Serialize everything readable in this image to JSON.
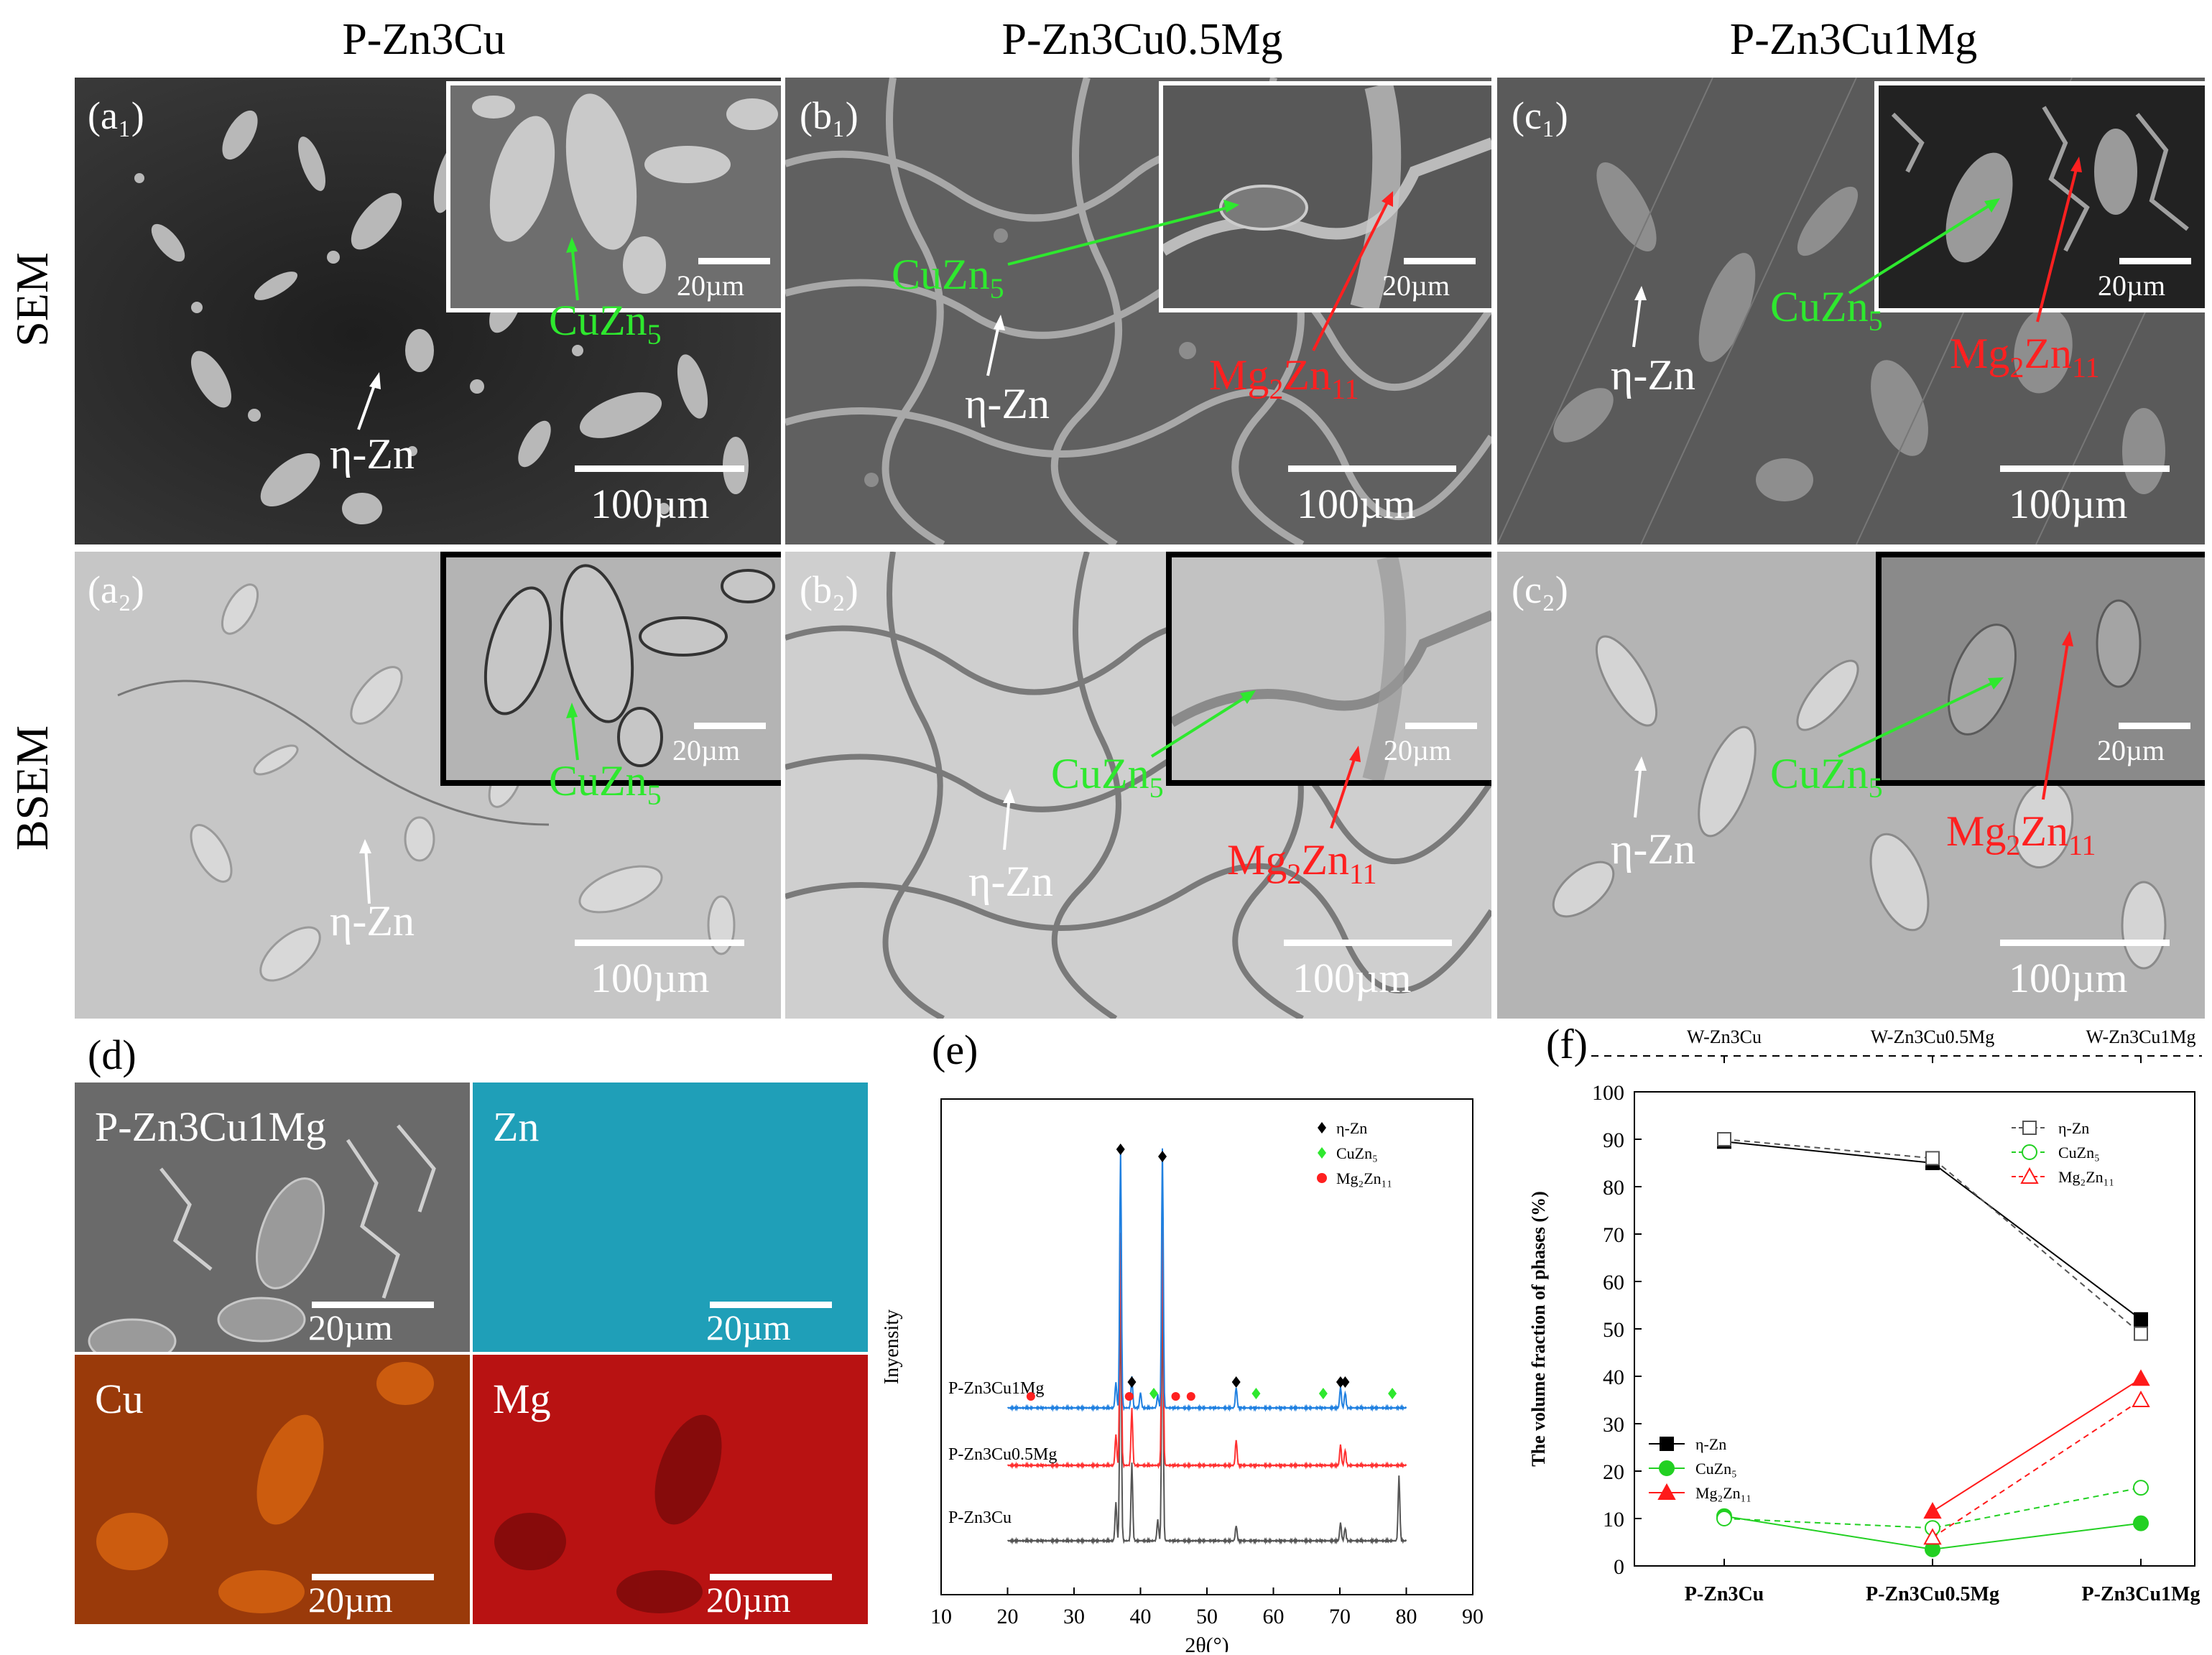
{
  "columns": [
    "P-Zn3Cu",
    "P-Zn3Cu0.5Mg",
    "P-Zn3Cu1Mg"
  ],
  "rows": [
    "SEM",
    "BSEM"
  ],
  "panels": {
    "a1": "(a₁)",
    "b1": "(b₁)",
    "c1": "(c₁)",
    "a2": "(a₂)",
    "b2": "(b₂)",
    "c2": "(c₂)",
    "d": "(d)",
    "e": "(e)",
    "f": "(f)"
  },
  "scale": {
    "main": "100µm",
    "inset": "20µm"
  },
  "phases": {
    "eta": "η-Zn",
    "cuzn_base": "CuZn",
    "cuzn_sub": "5",
    "mgzn_base": "Mg",
    "mgzn_sub1": "2",
    "mgzn_mid": "Zn",
    "mgzn_sub2": "11"
  },
  "maps": {
    "title": "P-Zn3Cu1Mg",
    "zn": "Zn",
    "cu": "Cu",
    "mg": "Mg",
    "colors": {
      "zn": "#1f9fb8",
      "cu": "#c8500f",
      "mg": "#c01010"
    }
  },
  "xrd": {
    "ylabel": "Inyensity",
    "xlabel": "2θ(°)",
    "legend": [
      "η-Zn",
      "CuZn₅",
      "Mg₂Zn₁₁"
    ],
    "samples": [
      "P-Zn3Cu1Mg",
      "P-Zn3Cu0.5Mg",
      "P-Zn3Cu"
    ],
    "xticks": [
      "10",
      "20",
      "30",
      "40",
      "50",
      "60",
      "70",
      "80",
      "90"
    ]
  },
  "chart_data": [
    {
      "type": "line",
      "id": "xrd",
      "x_range": [
        10,
        90
      ],
      "xlabel": "2θ(°)",
      "ylabel": "Inyensity",
      "series": [
        {
          "name": "P-Zn3Cu",
          "color": "#555555",
          "peaks": [
            {
              "x": 36.3,
              "h": 0.15
            },
            {
              "x": 37.0,
              "h": 0.97
            },
            {
              "x": 38.7,
              "h": 0.3
            },
            {
              "x": 42.6,
              "h": 0.08
            },
            {
              "x": 43.3,
              "h": 0.95
            },
            {
              "x": 54.4,
              "h": 0.06
            },
            {
              "x": 70.1,
              "h": 0.07
            },
            {
              "x": 70.8,
              "h": 0.05
            },
            {
              "x": 78.9,
              "h": 0.25
            }
          ]
        },
        {
          "name": "P-Zn3Cu0.5Mg",
          "color": "#ff3030",
          "peaks": [
            {
              "x": 36.3,
              "h": 0.12
            },
            {
              "x": 37.0,
              "h": 0.9
            },
            {
              "x": 38.7,
              "h": 0.22
            },
            {
              "x": 43.3,
              "h": 0.92
            },
            {
              "x": 54.4,
              "h": 0.1
            },
            {
              "x": 70.1,
              "h": 0.08
            },
            {
              "x": 70.8,
              "h": 0.06
            }
          ]
        },
        {
          "name": "P-Zn3Cu1Mg",
          "color": "#2080e0",
          "peaks": [
            {
              "x": 36.3,
              "h": 0.1
            },
            {
              "x": 37.0,
              "h": 1.0
            },
            {
              "x": 38.7,
              "h": 0.12
            },
            {
              "x": 40.0,
              "h": 0.06
            },
            {
              "x": 42.6,
              "h": 0.05
            },
            {
              "x": 43.3,
              "h": 1.0
            },
            {
              "x": 54.4,
              "h": 0.08
            },
            {
              "x": 70.1,
              "h": 0.08
            },
            {
              "x": 70.8,
              "h": 0.06
            }
          ]
        }
      ],
      "markers": {
        "eta": [
          37.0,
          38.7,
          43.3,
          54.4,
          70.1,
          70.8
        ],
        "cuzn5": [
          42.0,
          57.4,
          67.5,
          77.9
        ],
        "mg2zn11": [
          23.5,
          38.3,
          45.3,
          47.6
        ]
      }
    },
    {
      "type": "line",
      "id": "volume_fraction",
      "ylabel": "The volume fraction of phases (%)",
      "ylim": [
        0,
        100
      ],
      "yticks": [
        "0",
        "10",
        "20",
        "30",
        "40",
        "50",
        "60",
        "70",
        "80",
        "90",
        "100"
      ],
      "categories": [
        "P-Zn3Cu",
        "P-Zn3Cu0.5Mg",
        "P-Zn3Cu1Mg"
      ],
      "top_categories": [
        "W-Zn3Cu",
        "W-Zn3Cu0.5Mg",
        "W-Zn3Cu1Mg"
      ],
      "series": [
        {
          "name": "η-Zn",
          "group": "P",
          "color": "#000000",
          "marker": "square",
          "filled": true,
          "values": [
            89.5,
            85.0,
            52.0
          ]
        },
        {
          "name": "CuZn₅",
          "group": "P",
          "color": "#22d022",
          "marker": "circle",
          "filled": true,
          "values": [
            10.5,
            3.5,
            9.0
          ]
        },
        {
          "name": "Mg₂Zn₁₁",
          "group": "P",
          "color": "#ff1a1a",
          "marker": "triangle",
          "filled": true,
          "values": [
            null,
            11.5,
            39.5
          ]
        },
        {
          "name": "η-Zn",
          "group": "W",
          "color": "#555555",
          "marker": "square",
          "filled": false,
          "values": [
            90.0,
            86.0,
            49.0
          ]
        },
        {
          "name": "CuZn₅",
          "group": "W",
          "color": "#22d022",
          "marker": "circle",
          "filled": false,
          "values": [
            10.0,
            8.0,
            16.5
          ]
        },
        {
          "name": "Mg₂Zn₁₁",
          "group": "W",
          "color": "#ff1a1a",
          "marker": "triangle",
          "filled": false,
          "values": [
            null,
            6.0,
            35.0
          ]
        }
      ]
    }
  ]
}
